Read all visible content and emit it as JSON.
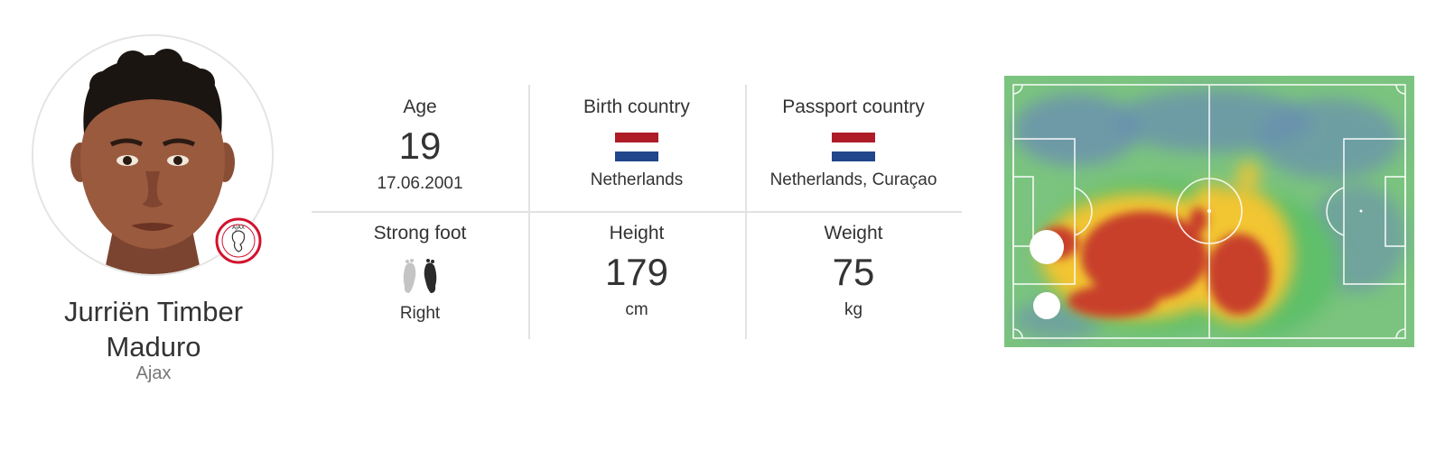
{
  "player": {
    "name_line1": "Jurriën Timber",
    "name_line2": "Maduro",
    "club": "Ajax",
    "club_badge_text": "AJAX"
  },
  "stats": {
    "age": {
      "label": "Age",
      "value": "19",
      "sub": "17.06.2001"
    },
    "birth_country": {
      "label": "Birth country",
      "value": "Netherlands",
      "flag_icon": "netherlands-flag-icon"
    },
    "passport_country": {
      "label": "Passport country",
      "value": "Netherlands, Curaçao",
      "flag_icon": "netherlands-flag-icon"
    },
    "strong_foot": {
      "label": "Strong foot",
      "value": "Right",
      "icon": "feet-icon"
    },
    "height": {
      "label": "Height",
      "value": "179",
      "unit": "cm"
    },
    "weight": {
      "label": "Weight",
      "value": "75",
      "unit": "kg"
    }
  },
  "colors": {
    "flag_red": "#ae1c28",
    "flag_white": "#ffffff",
    "flag_blue": "#21468b",
    "pitch_green": "#7bc47f",
    "heat_hot": "#c8412c",
    "heat_warm": "#f2c531",
    "heat_mid": "#5fbf6a",
    "heat_cool": "#6a8fb0"
  }
}
